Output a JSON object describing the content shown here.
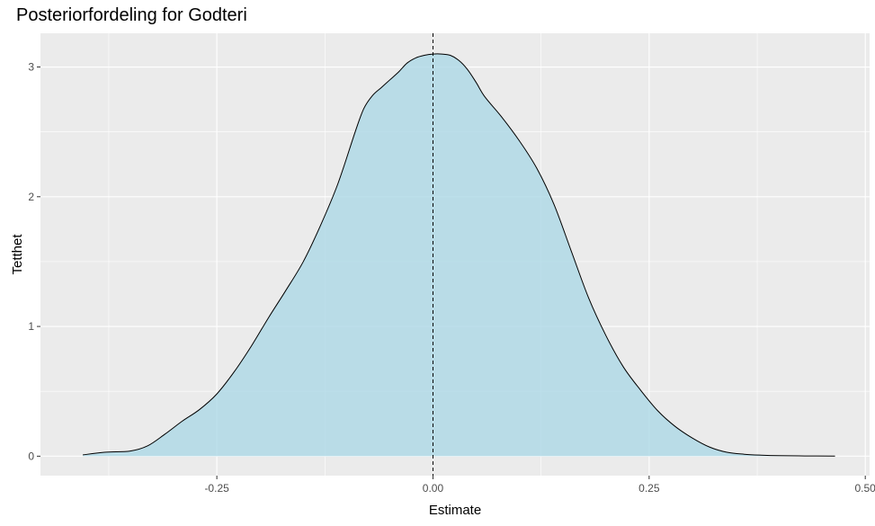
{
  "chart_data": {
    "type": "area",
    "title": "Posteriorfordeling for Godteri",
    "xlabel": "Estimate",
    "ylabel": "Tetthet",
    "xlim": [
      -0.454,
      0.505
    ],
    "ylim": [
      -0.15,
      3.26
    ],
    "x_ticks": [
      -0.25,
      0.0,
      0.25,
      0.5
    ],
    "x_tick_labels": [
      "-0.25",
      "0.00",
      "0.25",
      "0.50"
    ],
    "y_ticks": [
      0,
      1,
      2,
      3
    ],
    "y_tick_labels": [
      "0",
      "1",
      "2",
      "3"
    ],
    "grid": true,
    "vline": {
      "x": 0.0,
      "style": "dashed"
    },
    "colors": {
      "panel": "#ebebeb",
      "grid": "#ffffff",
      "fill": "#add8e6",
      "line": "#000000"
    },
    "series": [
      {
        "x": [
          -0.405,
          -0.38,
          -0.35,
          -0.33,
          -0.31,
          -0.29,
          -0.27,
          -0.25,
          -0.23,
          -0.21,
          -0.19,
          -0.17,
          -0.15,
          -0.13,
          -0.11,
          -0.09,
          -0.08,
          -0.07,
          -0.06,
          -0.05,
          -0.04,
          -0.03,
          -0.02,
          -0.01,
          0.0,
          0.01,
          0.02,
          0.03,
          0.04,
          0.05,
          0.06,
          0.08,
          0.1,
          0.12,
          0.14,
          0.16,
          0.18,
          0.2,
          0.22,
          0.24,
          0.26,
          0.28,
          0.3,
          0.32,
          0.34,
          0.36,
          0.38,
          0.4,
          0.43,
          0.465
        ],
        "y": [
          0.01,
          0.03,
          0.04,
          0.08,
          0.17,
          0.27,
          0.36,
          0.48,
          0.65,
          0.85,
          1.07,
          1.28,
          1.5,
          1.78,
          2.1,
          2.5,
          2.68,
          2.78,
          2.84,
          2.9,
          2.96,
          3.03,
          3.07,
          3.09,
          3.1,
          3.1,
          3.09,
          3.05,
          2.98,
          2.88,
          2.77,
          2.61,
          2.43,
          2.22,
          1.94,
          1.58,
          1.22,
          0.93,
          0.69,
          0.51,
          0.35,
          0.23,
          0.14,
          0.07,
          0.03,
          0.015,
          0.008,
          0.004,
          0.002,
          0.001
        ]
      }
    ]
  }
}
